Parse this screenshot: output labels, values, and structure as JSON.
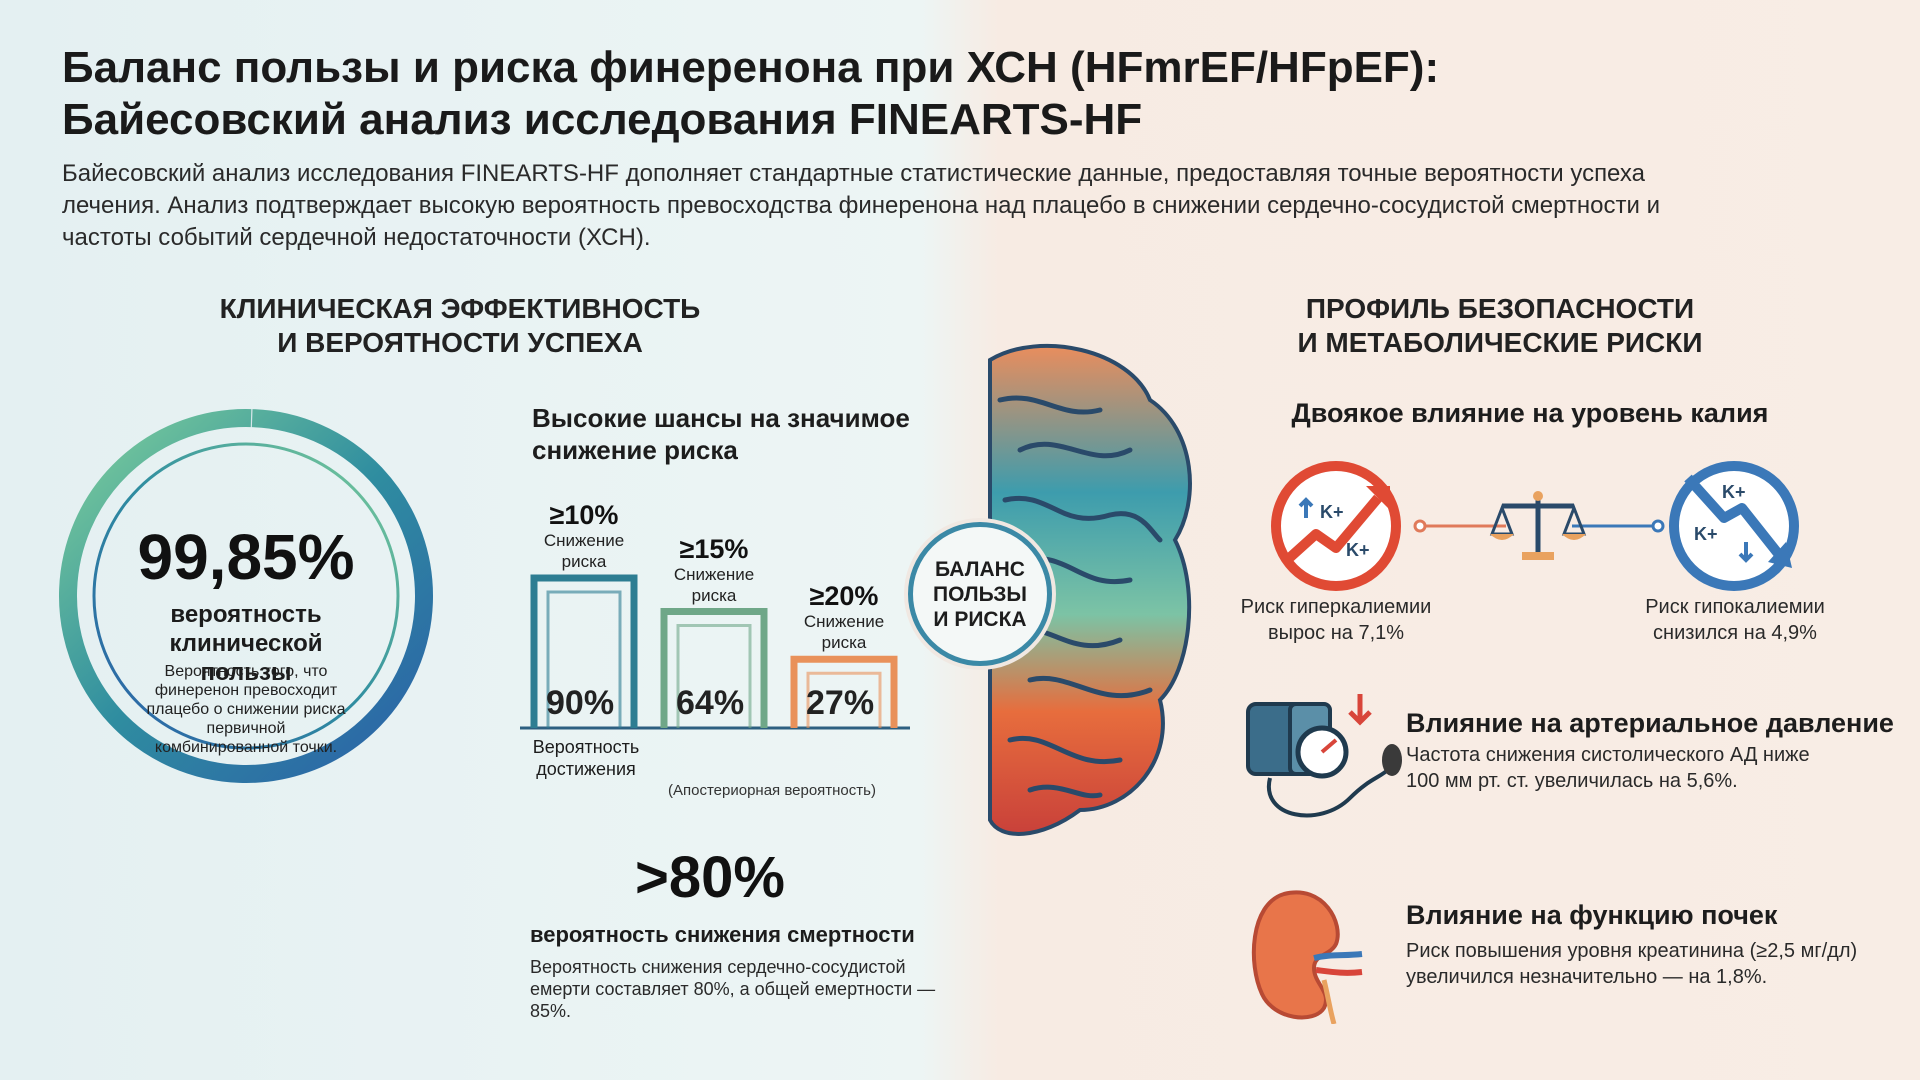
{
  "header": {
    "title_line1": "Баланс пользы и риска финеренона при ХСН (HFmrEF/HFpEF):",
    "title_line2": "Байесовский анализ исследования FINEARTS-HF",
    "intro": "Байесовский анализ исследования FINEARTS-HF дополняет стандартные статистические данные, предоставляя точные вероятности успеха лечения. Анализ подтверждает высокую вероятность превосходства финеренона над плацебо в снижении сердечно-сосудистой смертности и частоты событий сердечной недостаточности (ХСН)."
  },
  "efficacy": {
    "section_line1": "Клиническая эффективность",
    "section_line2": "и вероятности успеха",
    "benefit": {
      "value": "99,85%",
      "label": "вероятность клинической пользы",
      "description": "Вероятность того, что финеренон превосходит плацебо о снижении риска первичной комбинированной точки.",
      "progress_fraction": 0.9985
    },
    "chart_data": {
      "type": "bar",
      "title": "Высокие шансы на значимое снижение риска",
      "categories": [
        "≥10%",
        "≥15%",
        "≥20%"
      ],
      "category_sublabel": "Снижение риска",
      "values": [
        90,
        64,
        27
      ],
      "value_labels": [
        "90%",
        "64%",
        "27%"
      ],
      "value_axis_label": "Вероятность достижения",
      "note": "(Апостериорная вероятность)",
      "colors": [
        "#2d7d92",
        "#6fa788",
        "#e9915a"
      ]
    },
    "mortality": {
      "value": ">80%",
      "label": "вероятность снижения смертности",
      "description": "Вероятность снижения сердечно-сосудистой емерти составляет 80%, а общей емертности — 85%."
    }
  },
  "center": {
    "badge": "БАЛАНС ПОЛЬЗЫ И РИСКА",
    "icon": "brain-icon"
  },
  "safety": {
    "section_line1": "Профиль безопасности",
    "section_line2": "и метаболические риски",
    "potassium": {
      "title": "Двоякое влияние на уровень калия",
      "hyper": {
        "icon": "potassium-up-icon",
        "label": "K+",
        "text": "Риск гиперкалиемии вырос на 7,1%"
      },
      "hypo": {
        "icon": "potassium-down-icon",
        "label": "K+",
        "text": "Риск гипокалиемии снизился на 4,9%"
      },
      "balance_icon": "scales-icon"
    },
    "bp": {
      "icon": "blood-pressure-monitor-icon",
      "title": "Влияние на артериальное давление",
      "text": "Частота снижения систолического АД ниже 100 мм рт. ст. увеличилась на 5,6%."
    },
    "kidney": {
      "icon": "kidney-icon",
      "title": "Влияние на функцию почек",
      "text": "Риск повышения уровня креатинина (≥2,5 мг/дл) увеличился незначительно — на 1,8%."
    }
  },
  "colors": {
    "teal": "#2d7d92",
    "green": "#6fbf8a",
    "orange": "#e9915a",
    "red": "#d8453a",
    "blue": "#3b78b8"
  }
}
